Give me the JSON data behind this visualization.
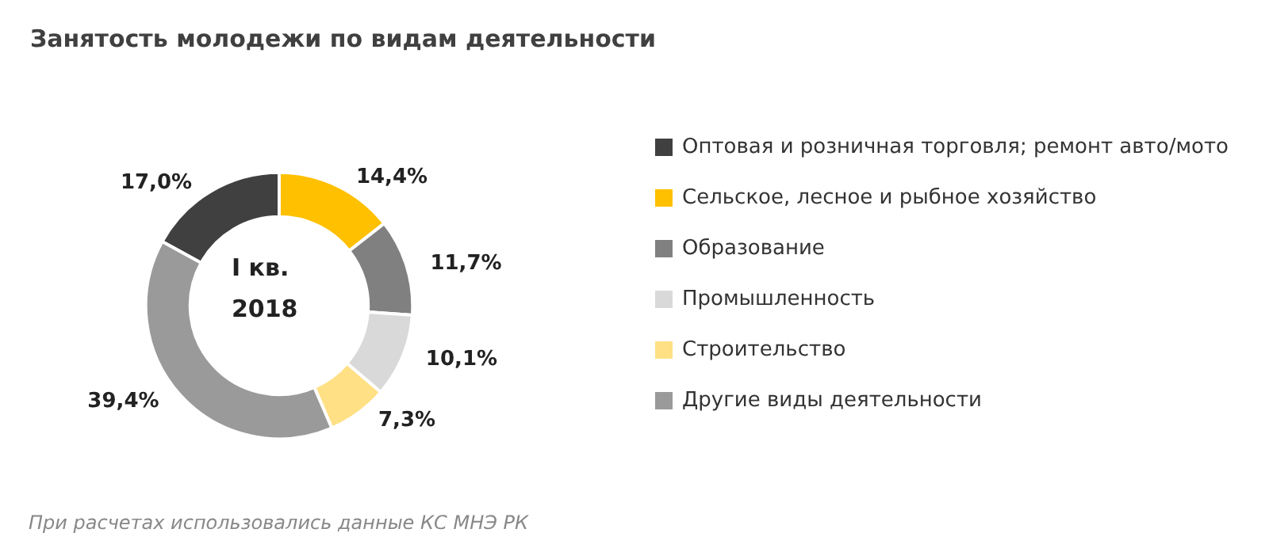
{
  "chart_data": {
    "type": "donut",
    "title": "Занятость молодежи по видам деятельности",
    "categories": [
      "Оптовая и розничная торговля; ремонт авто/мото",
      "Сельское, лесное и рыбное хозяйство",
      "Образование",
      "Промышленность",
      "Строительство",
      "Другие виды деятельности"
    ],
    "values": [
      17.0,
      14.4,
      11.7,
      10.1,
      7.3,
      39.4
    ],
    "value_labels": [
      "17,0%",
      "14,4%",
      "11,7%",
      "10,1%",
      "7,3%",
      "39,4%"
    ],
    "colors": [
      "#404040",
      "#ffc000",
      "#808080",
      "#d9d9d9",
      "#ffe084",
      "#9a9a9a"
    ],
    "legend": "right",
    "annotations": [
      "I кв.\n2018",
      "При расчетах использовались данные КС МНЭ РК"
    ]
  }
}
